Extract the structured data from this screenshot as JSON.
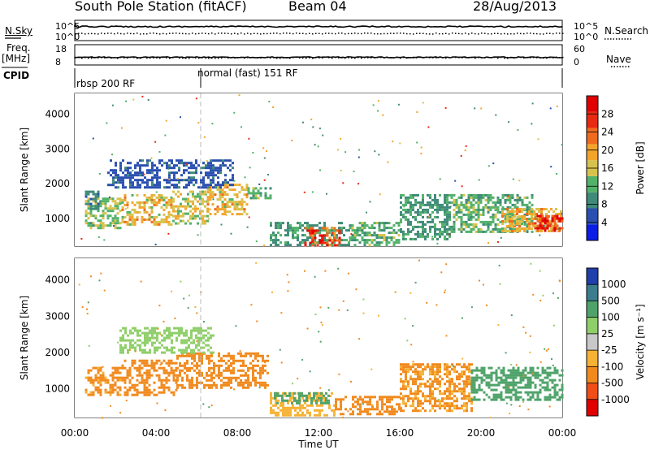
{
  "header": {
    "station": "South Pole Station (fitACF)",
    "beam": "Beam 04",
    "date": "28/Aug/2013"
  },
  "left_labels": {
    "nsky": "N.Sky",
    "freq": "Freq.",
    "freq_unit": "[MHz]",
    "cpid": "CPID"
  },
  "right_labels": {
    "nsearch": "N.Search",
    "nave": "Nave"
  },
  "cpid_segments": [
    "rbsp 200 RF",
    "normal (fast) 151 RF"
  ],
  "colors": {
    "power": [
      "#0a1ee6",
      "#2a4fb0",
      "#3f8a78",
      "#52b26a",
      "#d8c24e",
      "#f3a52a",
      "#ef6b1e",
      "#e82a10",
      "#e00000"
    ],
    "velocity": [
      "#e00000",
      "#ef4e17",
      "#f18a1e",
      "#f6b234",
      "#c8c8c8",
      "#8fcf6a",
      "#4fa36a",
      "#3b7c8f",
      "#1f3faa"
    ]
  },
  "chart_data": [
    {
      "type": "line",
      "panel": "noise",
      "y_left": {
        "label": "N.Sky",
        "ticks": [
          "10^5",
          "10^0"
        ]
      },
      "y_right": {
        "label": "N.Search",
        "ticks": [
          "10^5",
          "10^0"
        ]
      }
    },
    {
      "type": "line",
      "panel": "frequency",
      "y_left": {
        "label": "Freq. [MHz]",
        "ticks": [
          "18",
          "8"
        ],
        "ylim": [
          8,
          18
        ]
      },
      "y_right": {
        "label": "Nave",
        "ticks": [
          "60",
          "0"
        ],
        "ylim": [
          0,
          60
        ]
      },
      "series": [
        {
          "name": "Freq.",
          "x": [
            0,
            24
          ],
          "y": [
            11.8,
            11.8
          ]
        },
        {
          "name": "Nave",
          "x": [
            0,
            24
          ],
          "y": [
            25,
            25
          ]
        }
      ]
    },
    {
      "type": "heatmap",
      "panel": "power",
      "ylabel": "Slant Range [km]",
      "yticks": [
        "1000",
        "2000",
        "3000",
        "4000"
      ],
      "ylim": [
        200,
        4600
      ],
      "xlim": [
        0,
        24
      ],
      "colorbar": {
        "label": "Power [dB]",
        "ticks": [
          "4",
          "8",
          "12",
          "16",
          "20",
          "24",
          "28"
        ],
        "range": [
          0,
          32
        ]
      },
      "patches": [
        {
          "x": [
            0.5,
            2.3
          ],
          "range": [
            700,
            1600
          ],
          "value": 14
        },
        {
          "x": [
            2.3,
            4.8
          ],
          "range": [
            800,
            1700
          ],
          "value": 18
        },
        {
          "x": [
            4.8,
            6.5
          ],
          "range": [
            850,
            1800
          ],
          "value": 16
        },
        {
          "x": [
            6.5,
            8.5
          ],
          "range": [
            1100,
            2000
          ],
          "value": 18
        },
        {
          "x": [
            8.5,
            9.6
          ],
          "range": [
            1550,
            1900
          ],
          "value": 12
        },
        {
          "x": [
            1.6,
            7.8
          ],
          "range": [
            1900,
            2700
          ],
          "value": 6
        },
        {
          "x": [
            0.5,
            1.2
          ],
          "range": [
            1300,
            1800
          ],
          "value": 8
        },
        {
          "x": [
            9.6,
            13.5
          ],
          "range": [
            250,
            900
          ],
          "value": 10
        },
        {
          "x": [
            11.3,
            13.0
          ],
          "range": [
            250,
            750
          ],
          "value": 26
        },
        {
          "x": [
            13.5,
            16.0
          ],
          "range": [
            250,
            900
          ],
          "value": 12
        },
        {
          "x": [
            16.0,
            18.5
          ],
          "range": [
            400,
            1700
          ],
          "value": 10
        },
        {
          "x": [
            18.5,
            22.5
          ],
          "range": [
            600,
            1700
          ],
          "value": 12
        },
        {
          "x": [
            21.0,
            24.0
          ],
          "range": [
            600,
            1300
          ],
          "value": 18
        },
        {
          "x": [
            22.5,
            24.0
          ],
          "range": [
            650,
            1100
          ],
          "value": 28
        }
      ]
    },
    {
      "type": "heatmap",
      "panel": "velocity",
      "ylabel": "Slant Range [km]",
      "yticks": [
        "1000",
        "2000",
        "3000",
        "4000"
      ],
      "ylim": [
        200,
        4600
      ],
      "xlim": [
        0,
        24
      ],
      "xlabel": "Time UT",
      "xticks": [
        "00:00",
        "04:00",
        "08:00",
        "12:00",
        "16:00",
        "20:00",
        "00:00"
      ],
      "colorbar": {
        "label": "Velocity [m s⁻¹]",
        "ticks": [
          "-1000",
          "-500",
          "-100",
          "-25",
          "25",
          "100",
          "500",
          "1000"
        ]
      },
      "patches": [
        {
          "x": [
            0.5,
            2.3
          ],
          "range": [
            800,
            1600
          ],
          "value": -120
        },
        {
          "x": [
            2.3,
            5.0
          ],
          "range": [
            850,
            1800
          ],
          "value": -150
        },
        {
          "x": [
            5.0,
            9.5
          ],
          "range": [
            1000,
            2000
          ],
          "value": -160
        },
        {
          "x": [
            2.2,
            6.8
          ],
          "range": [
            2000,
            2700
          ],
          "value": 60
        },
        {
          "x": [
            9.6,
            12.8
          ],
          "range": [
            250,
            900
          ],
          "value": -80
        },
        {
          "x": [
            12.8,
            16.0
          ],
          "range": [
            300,
            800
          ],
          "value": -140
        },
        {
          "x": [
            9.8,
            12.5
          ],
          "range": [
            600,
            900
          ],
          "value": 150
        },
        {
          "x": [
            16.0,
            19.5
          ],
          "range": [
            400,
            1700
          ],
          "value": -110
        },
        {
          "x": [
            19.5,
            24.0
          ],
          "range": [
            700,
            1600
          ],
          "value": 300
        }
      ]
    }
  ]
}
